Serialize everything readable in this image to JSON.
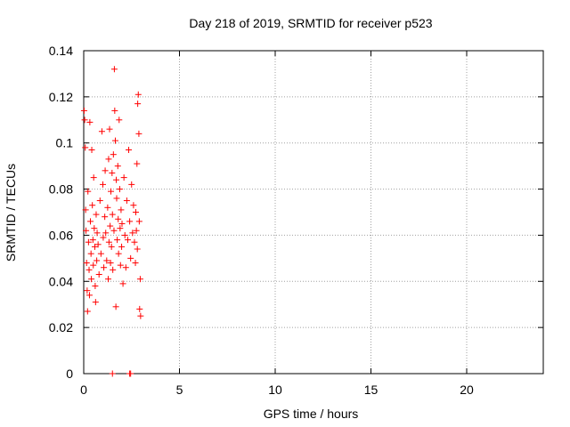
{
  "chart_data": {
    "type": "scatter",
    "title": "Day 218 of 2019, SRMTID for receiver p523",
    "xlabel": "GPS time / hours",
    "ylabel": "SRMTID / TECUs",
    "xlim": [
      0,
      24
    ],
    "ylim": [
      0,
      0.14
    ],
    "grid": true,
    "marker": "+",
    "colors": {
      "points": "#ff0000",
      "grid": "#a0a0a0",
      "axis": "#000000"
    },
    "x_ticks": [
      0,
      5,
      10,
      15,
      20
    ],
    "x_tick_labels": [
      "0",
      "5",
      "10",
      "15",
      "20"
    ],
    "y_ticks": [
      0,
      0.02,
      0.04,
      0.06,
      0.08,
      0.1,
      0.12,
      0.14
    ],
    "y_tick_labels": [
      "0",
      "0.02",
      "0.04",
      "0.06",
      "0.08",
      "0.1",
      "0.12",
      "0.14"
    ],
    "series": [
      {
        "points": [
          [
            0.02,
            0.114
          ],
          [
            0.05,
            0.11
          ],
          [
            0.08,
            0.098
          ],
          [
            0.1,
            0.071
          ],
          [
            0.12,
            0.062
          ],
          [
            0.15,
            0.048
          ],
          [
            0.18,
            0.036
          ],
          [
            0.2,
            0.027
          ],
          [
            0.22,
            0.079
          ],
          [
            0.25,
            0.057
          ],
          [
            0.28,
            0.045
          ],
          [
            0.3,
            0.034
          ],
          [
            0.32,
            0.109
          ],
          [
            0.35,
            0.066
          ],
          [
            0.38,
            0.052
          ],
          [
            0.4,
            0.041
          ],
          [
            0.42,
            0.097
          ],
          [
            0.45,
            0.073
          ],
          [
            0.48,
            0.058
          ],
          [
            0.5,
            0.047
          ],
          [
            0.52,
            0.085
          ],
          [
            0.55,
            0.063
          ],
          [
            0.58,
            0.055
          ],
          [
            0.6,
            0.038
          ],
          [
            0.62,
            0.031
          ],
          [
            0.65,
            0.069
          ],
          [
            0.68,
            0.049
          ],
          [
            0.7,
            0.061
          ],
          [
            0.75,
            0.056
          ],
          [
            0.8,
            0.043
          ],
          [
            0.85,
            0.075
          ],
          [
            0.9,
            0.052
          ],
          [
            0.95,
            0.105
          ],
          [
            1.0,
            0.082
          ],
          [
            1.02,
            0.059
          ],
          [
            1.05,
            0.046
          ],
          [
            1.1,
            0.068
          ],
          [
            1.12,
            0.088
          ],
          [
            1.15,
            0.061
          ],
          [
            1.2,
            0.049
          ],
          [
            1.25,
            0.072
          ],
          [
            1.28,
            0.041
          ],
          [
            1.3,
            0.093
          ],
          [
            1.32,
            0.057
          ],
          [
            1.35,
            0.106
          ],
          [
            1.38,
            0.064
          ],
          [
            1.4,
            0.048
          ],
          [
            1.42,
            0.079
          ],
          [
            1.45,
            0.055
          ],
          [
            1.48,
            0.087
          ],
          [
            1.5,
            0.069
          ],
          [
            1.52,
            0.045
          ],
          [
            1.55,
            0.095
          ],
          [
            1.58,
            0.062
          ],
          [
            1.6,
            0.132
          ],
          [
            1.62,
            0.114
          ],
          [
            1.65,
            0.101
          ],
          [
            1.68,
            0.029
          ],
          [
            1.7,
            0.084
          ],
          [
            1.72,
            0.076
          ],
          [
            1.75,
            0.058
          ],
          [
            1.78,
            0.09
          ],
          [
            1.8,
            0.067
          ],
          [
            1.82,
            0.052
          ],
          [
            1.85,
            0.11
          ],
          [
            1.88,
            0.08
          ],
          [
            1.9,
            0.063
          ],
          [
            1.92,
            0.047
          ],
          [
            1.95,
            0.071
          ],
          [
            1.98,
            0.055
          ],
          [
            2.0,
            0.065
          ],
          [
            2.05,
            0.039
          ],
          [
            2.1,
            0.085
          ],
          [
            2.15,
            0.06
          ],
          [
            2.2,
            0.046
          ],
          [
            2.25,
            0.075
          ],
          [
            2.3,
            0.058
          ],
          [
            2.35,
            0.097
          ],
          [
            2.4,
            0.066
          ],
          [
            2.45,
            0.05
          ],
          [
            2.5,
            0.082
          ],
          [
            2.55,
            0.061
          ],
          [
            2.6,
            0.073
          ],
          [
            2.65,
            0.057
          ],
          [
            2.7,
            0.048
          ],
          [
            2.72,
            0.07
          ],
          [
            2.75,
            0.062
          ],
          [
            2.78,
            0.091
          ],
          [
            2.8,
            0.054
          ],
          [
            2.82,
            0.117
          ],
          [
            2.85,
            0.121
          ],
          [
            2.88,
            0.104
          ],
          [
            2.9,
            0.066
          ],
          [
            2.92,
            0.028
          ],
          [
            2.95,
            0.041
          ],
          [
            2.97,
            0.025
          ],
          [
            1.5,
            0.0
          ],
          [
            2.4,
            0.0
          ],
          [
            2.45,
            0.0
          ]
        ]
      }
    ]
  }
}
